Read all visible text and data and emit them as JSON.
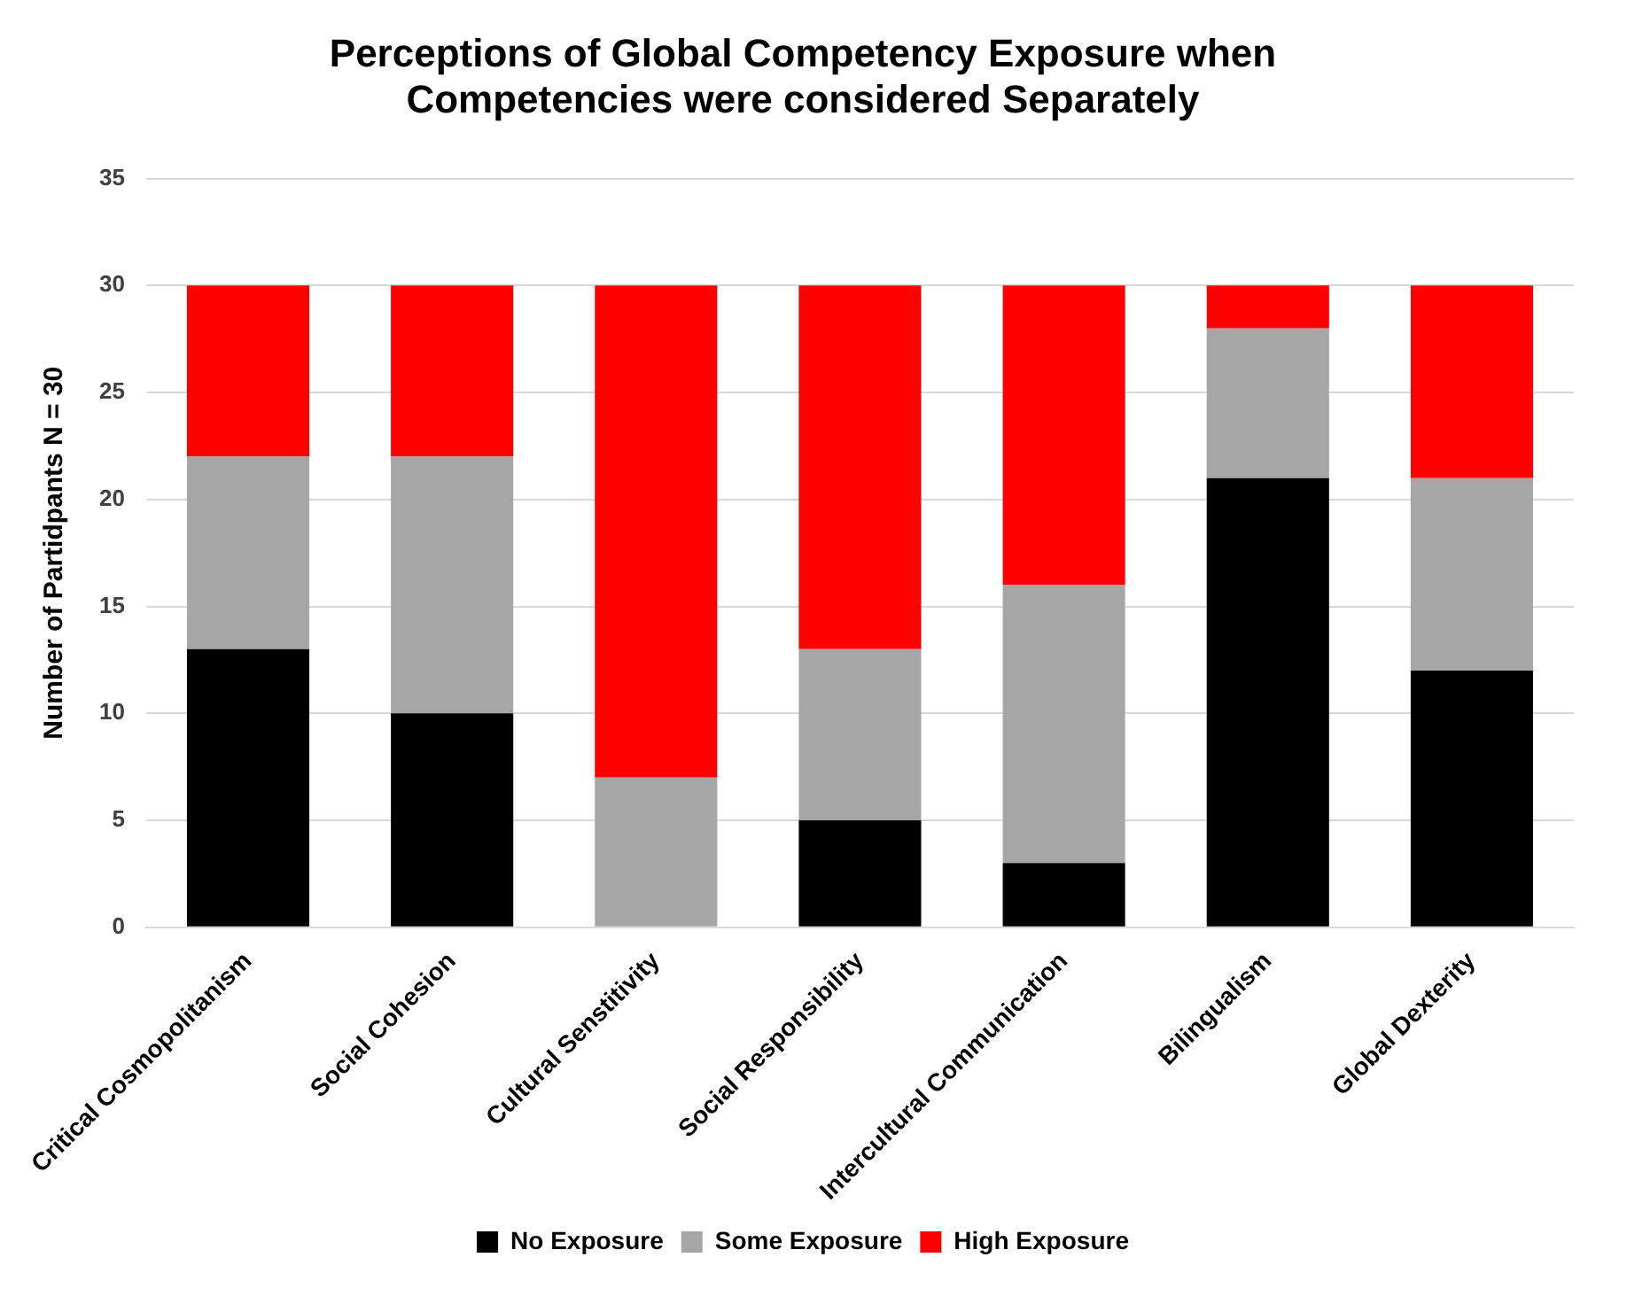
{
  "chart_data": {
    "type": "bar",
    "stacked": true,
    "title": "Perceptions of Global Competency Exposure when Competencies were considered Separately",
    "ylabel": "Number of Partidpants N = 30",
    "categories": [
      "Critical Cosmopolitanism",
      "Social Cohesion",
      "Cultural Senstitivity",
      "Social Responsibility",
      "Intercultural Communication",
      "Bilingualism",
      "Global Dexterity"
    ],
    "series": [
      {
        "name": "No Exposure",
        "color": "#000000",
        "values": [
          13,
          10,
          0,
          5,
          3,
          21,
          12
        ]
      },
      {
        "name": "Some Exposure",
        "color": "#a6a6a6",
        "values": [
          9,
          12,
          7,
          8,
          13,
          7,
          9
        ]
      },
      {
        "name": "High Exposure",
        "color": "#ff0000",
        "values": [
          8,
          8,
          23,
          17,
          14,
          2,
          9
        ]
      }
    ],
    "ylim": [
      0,
      35
    ],
    "yticks": [
      0,
      5,
      10,
      15,
      20,
      25,
      30,
      35
    ],
    "grid": "y",
    "legend": "bottom"
  }
}
